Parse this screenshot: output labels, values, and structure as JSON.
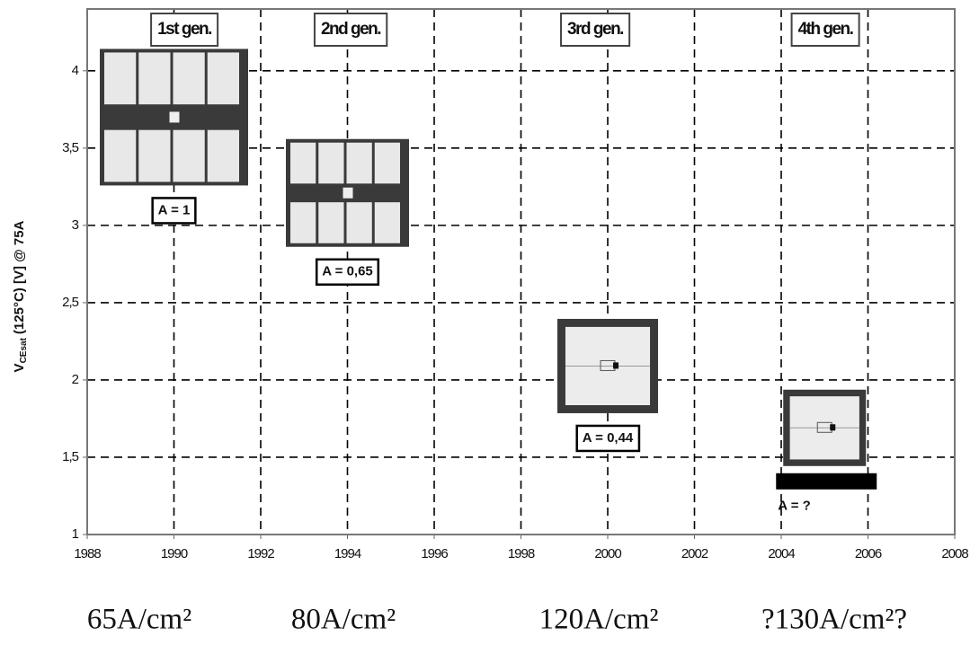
{
  "chart_data": {
    "type": "scatter",
    "y_label": {
      "main": "V",
      "sub": "CEsat",
      "rest": "(125°C) [V] @ 75A"
    },
    "x": [
      1990,
      1994,
      2000,
      2005
    ],
    "values": [
      3.7,
      3.21,
      2.09,
      1.69
    ],
    "generations": [
      "1st gen.",
      "2nd gen.",
      "3rd gen.",
      "4th gen."
    ],
    "area_labels": [
      "A = 1",
      "A = 0,65",
      "A = 0,44",
      "A = ?"
    ],
    "current_densities": [
      "65A/cm²",
      "80A/cm²",
      "120A/cm²",
      "?130A/cm²?"
    ],
    "xlim": [
      1988,
      2008
    ],
    "xticks": [
      1988,
      1990,
      1992,
      1994,
      1996,
      1998,
      2000,
      2002,
      2004,
      2006,
      2008
    ],
    "ylim": [
      1,
      4.4
    ],
    "yticks": [
      1,
      {
        "value": 1.5,
        "label": "1,5"
      },
      2,
      {
        "value": 2.5,
        "label": "2,5"
      },
      3,
      {
        "value": 3.5,
        "label": "3,5"
      },
      4
    ],
    "grid": true
  }
}
